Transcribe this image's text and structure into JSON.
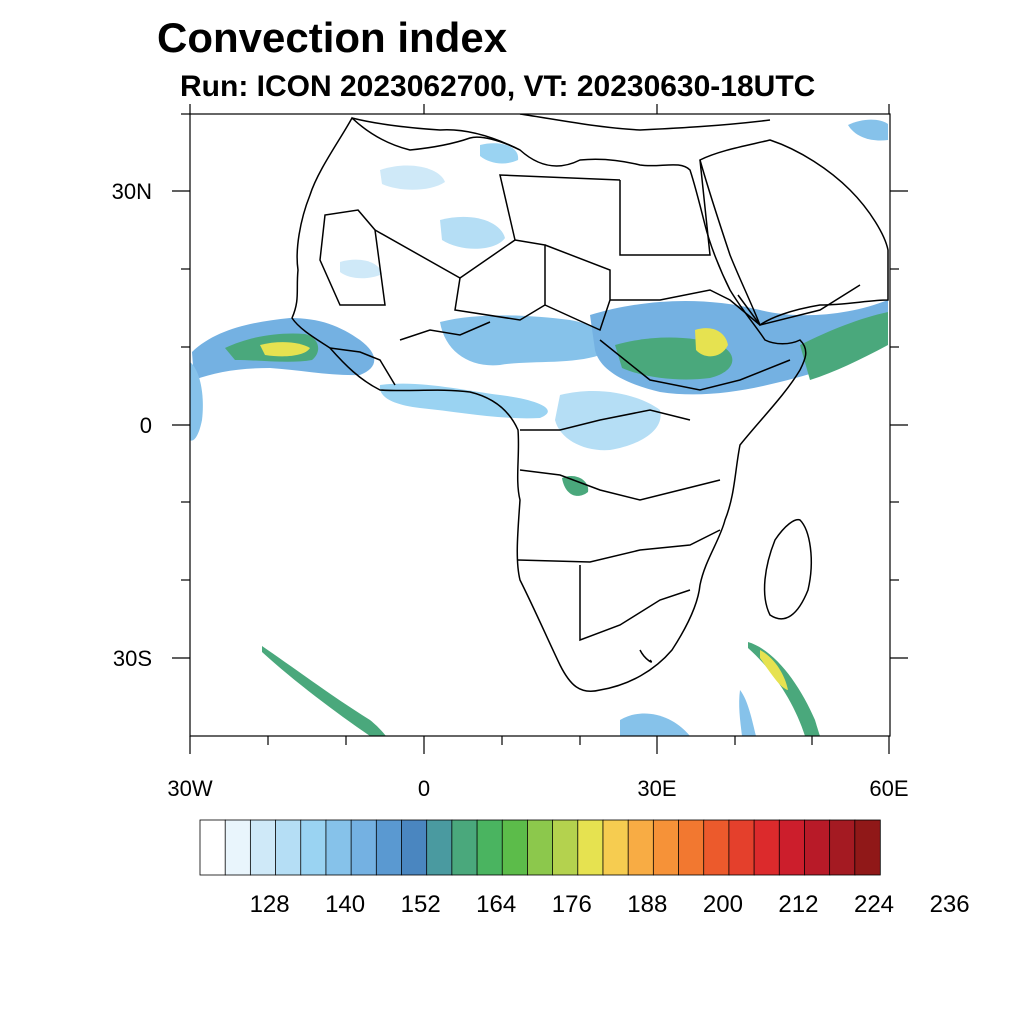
{
  "title": "Convection index",
  "subtitle": "Run: ICON 2023062700,  VT: 20230630-18UTC",
  "lat_labels": [
    "30N",
    "0",
    "30S"
  ],
  "lon_labels": [
    "30W",
    "0",
    "30E",
    "60E"
  ],
  "colorbar": {
    "labels": [
      "128",
      "140",
      "152",
      "164",
      "176",
      "188",
      "200",
      "212",
      "224",
      "236"
    ],
    "colors": [
      "#ffffff",
      "#e9f5fc",
      "#cfe9f8",
      "#b5def5",
      "#9ad3f2",
      "#86c2ea",
      "#74b1e2",
      "#5a99d1",
      "#4a86c0",
      "#4a9aa0",
      "#4aa87c",
      "#4ab460",
      "#5cbc4a",
      "#8cc84c",
      "#b4d24e",
      "#e6e250",
      "#f6cc50",
      "#f8ac44",
      "#f69238",
      "#f27830",
      "#ec5a2c",
      "#e4402c",
      "#dc2a2c",
      "#cc1e2c",
      "#b81a28",
      "#a41a22",
      "#901818"
    ]
  },
  "map": {
    "extent": {
      "lon_min": -30,
      "lon_max": 60,
      "lat_min": -40,
      "lat_max": 40
    },
    "ocean_color": "#ffffff",
    "land_color": "#ffffff",
    "border_color": "#000000"
  }
}
